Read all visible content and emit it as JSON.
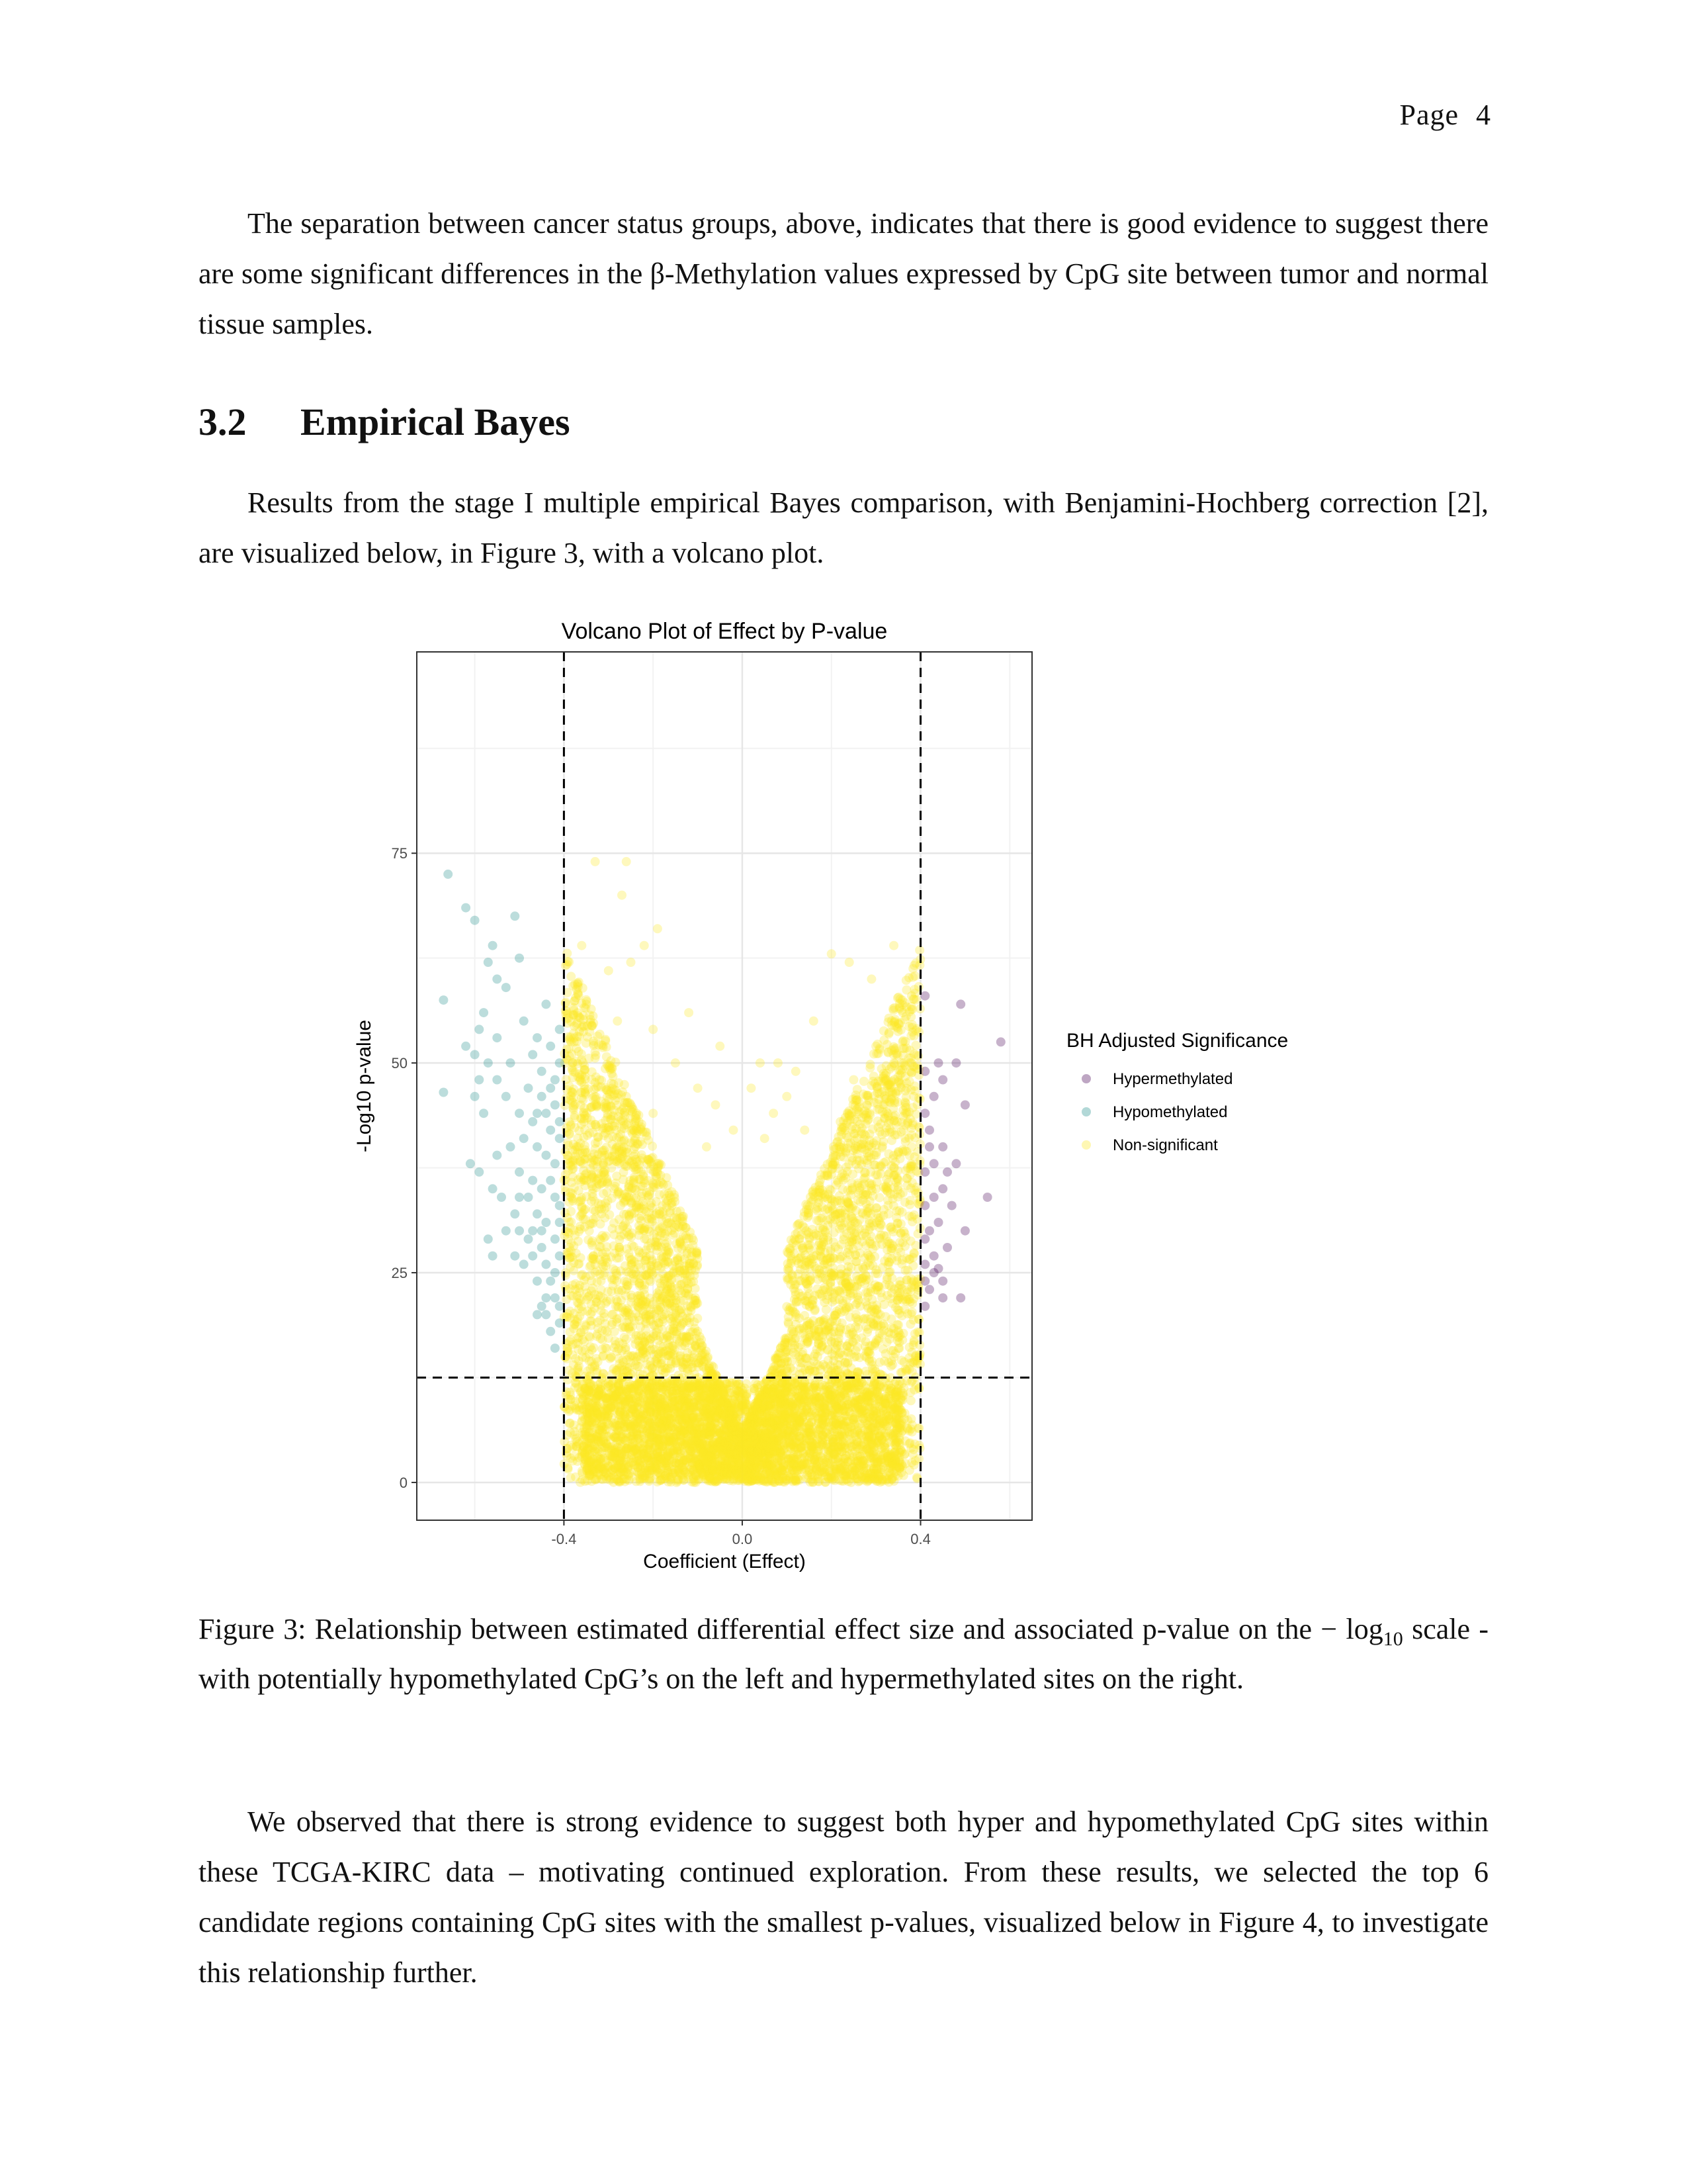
{
  "page": {
    "label": "Page",
    "number": "4"
  },
  "paragraph1": "The separation between cancer status groups, above, indicates that there is good evidence to suggest there are some significant differences in the β-Methylation values expressed by CpG site between tumor and normal tissue samples.",
  "section": {
    "number": "3.2",
    "title": "Empirical Bayes"
  },
  "paragraph2": "Results from the stage I multiple empirical Bayes comparison, with Benjamini-Hochberg correction [2], are visualized below, in Figure 3, with a volcano plot.",
  "caption": {
    "prefix": "Figure 3:",
    "text_before": "Relationship between estimated differential effect size and associated p-value on the − log",
    "subscript": "10",
    "text_after": " scale - with potentially hypomethylated CpG’s on the left and hypermethylated sites on the right."
  },
  "paragraph3": "We observed that there is strong evidence to suggest both hyper and hypomethylated CpG sites within these TCGA-KIRC data – motivating continued exploration. From these results, we selected the top 6 candidate regions containing CpG sites with the smallest p-values, visualized below in Figure 4, to investigate this relationship further.",
  "chart_data": {
    "type": "scatter",
    "title": "Volcano Plot of Effect by P-value",
    "xlabel": "Coefficient (Effect)",
    "ylabel": "-Log10 p-value",
    "xlim": [
      -0.73,
      0.65
    ],
    "ylim": [
      -4.5,
      99
    ],
    "x_ticks": [
      -0.4,
      0.0,
      0.4
    ],
    "x_tick_labels": [
      "-0.4",
      "0.0",
      "0.4"
    ],
    "y_ticks": [
      0,
      25,
      50,
      75
    ],
    "y_tick_labels": [
      "0",
      "25",
      "50",
      "75"
    ],
    "reference_lines": {
      "vertical": [
        -0.4,
        0.4
      ],
      "horizontal": [
        12.5
      ],
      "style": "dashed"
    },
    "grid": true,
    "legend": {
      "title": "BH Adjusted Significance",
      "position": "right",
      "entries": [
        {
          "name": "Hypermethylated",
          "color": "#440154"
        },
        {
          "name": "Hypomethylated",
          "color": "#21908C"
        },
        {
          "name": "Non-significant",
          "color": "#FDE725"
        }
      ]
    },
    "series": [
      {
        "name": "Hypermethylated",
        "color": "#440154",
        "points": [
          [
            0.41,
            58
          ],
          [
            0.49,
            57
          ],
          [
            0.58,
            52.5
          ],
          [
            0.41,
            49
          ],
          [
            0.44,
            50
          ],
          [
            0.45,
            48
          ],
          [
            0.48,
            50
          ],
          [
            0.5,
            45
          ],
          [
            0.43,
            46
          ],
          [
            0.41,
            44
          ],
          [
            0.42,
            42
          ],
          [
            0.45,
            40
          ],
          [
            0.42,
            40
          ],
          [
            0.43,
            38
          ],
          [
            0.46,
            37
          ],
          [
            0.48,
            38
          ],
          [
            0.41,
            37
          ],
          [
            0.45,
            35
          ],
          [
            0.43,
            34
          ],
          [
            0.47,
            33
          ],
          [
            0.41,
            33
          ],
          [
            0.55,
            34
          ],
          [
            0.5,
            30
          ],
          [
            0.44,
            31
          ],
          [
            0.42,
            30
          ],
          [
            0.41,
            29
          ],
          [
            0.46,
            28
          ],
          [
            0.43,
            27
          ],
          [
            0.41,
            26
          ],
          [
            0.44,
            25.5
          ],
          [
            0.43,
            25
          ],
          [
            0.45,
            24
          ],
          [
            0.41,
            24
          ],
          [
            0.42,
            23
          ],
          [
            0.45,
            22
          ],
          [
            0.49,
            22
          ],
          [
            0.41,
            21
          ]
        ]
      },
      {
        "name": "Hypomethylated",
        "color": "#21908C",
        "points": [
          [
            -0.66,
            72.5
          ],
          [
            -0.5,
            62.5
          ],
          [
            -0.67,
            57.5
          ],
          [
            -0.67,
            46.5
          ],
          [
            -0.62,
            68.5
          ],
          [
            -0.6,
            67
          ],
          [
            -0.51,
            67.5
          ],
          [
            -0.56,
            64
          ],
          [
            -0.57,
            62
          ],
          [
            -0.55,
            60
          ],
          [
            -0.53,
            59
          ],
          [
            -0.58,
            56
          ],
          [
            -0.59,
            54
          ],
          [
            -0.55,
            53
          ],
          [
            -0.62,
            52
          ],
          [
            -0.6,
            51
          ],
          [
            -0.57,
            50
          ],
          [
            -0.59,
            48
          ],
          [
            -0.55,
            48
          ],
          [
            -0.6,
            46
          ],
          [
            -0.58,
            44
          ],
          [
            -0.53,
            46
          ],
          [
            -0.52,
            50
          ],
          [
            -0.49,
            55
          ],
          [
            -0.46,
            53
          ],
          [
            -0.44,
            57
          ],
          [
            -0.43,
            52
          ],
          [
            -0.41,
            50
          ],
          [
            -0.48,
            47
          ],
          [
            -0.45,
            46
          ],
          [
            -0.42,
            45
          ],
          [
            -0.5,
            44
          ],
          [
            -0.47,
            43
          ],
          [
            -0.43,
            42
          ],
          [
            -0.41,
            41
          ],
          [
            -0.49,
            41
          ],
          [
            -0.46,
            40
          ],
          [
            -0.52,
            40
          ],
          [
            -0.55,
            39
          ],
          [
            -0.44,
            39
          ],
          [
            -0.42,
            38
          ],
          [
            -0.5,
            37
          ],
          [
            -0.47,
            36
          ],
          [
            -0.61,
            38
          ],
          [
            -0.59,
            37
          ],
          [
            -0.56,
            35
          ],
          [
            -0.54,
            34
          ],
          [
            -0.48,
            34
          ],
          [
            -0.45,
            35
          ],
          [
            -0.42,
            34
          ],
          [
            -0.41,
            33
          ],
          [
            -0.51,
            32
          ],
          [
            -0.46,
            32
          ],
          [
            -0.44,
            31
          ],
          [
            -0.5,
            30
          ],
          [
            -0.53,
            30
          ],
          [
            -0.48,
            29
          ],
          [
            -0.45,
            28
          ],
          [
            -0.42,
            29
          ],
          [
            -0.41,
            27
          ],
          [
            -0.47,
            27
          ],
          [
            -0.49,
            26
          ],
          [
            -0.44,
            26
          ],
          [
            -0.43,
            24
          ],
          [
            -0.46,
            24
          ],
          [
            -0.42,
            22
          ],
          [
            -0.45,
            21
          ],
          [
            -0.44,
            20
          ],
          [
            -0.41,
            19
          ],
          [
            -0.43,
            18
          ],
          [
            -0.42,
            16
          ],
          [
            -0.56,
            27
          ],
          [
            -0.51,
            27
          ],
          [
            -0.57,
            29
          ],
          [
            -0.5,
            34
          ],
          [
            -0.43,
            47
          ],
          [
            -0.41,
            54
          ],
          [
            -0.45,
            49
          ],
          [
            -0.47,
            51
          ],
          [
            -0.42,
            48
          ],
          [
            -0.44,
            44
          ],
          [
            -0.46,
            44
          ],
          [
            -0.41,
            43
          ],
          [
            -0.43,
            36
          ],
          [
            -0.41,
            31
          ],
          [
            -0.45,
            30
          ],
          [
            -0.47,
            30
          ],
          [
            -0.42,
            25
          ],
          [
            -0.44,
            22
          ],
          [
            -0.41,
            21
          ],
          [
            -0.46,
            20
          ]
        ]
      },
      {
        "name": "Non-significant",
        "color": "#FDE725",
        "points": [
          [
            -0.33,
            74
          ],
          [
            -0.26,
            74
          ],
          [
            -0.27,
            70
          ],
          [
            -0.36,
            64
          ],
          [
            -0.22,
            64
          ],
          [
            -0.3,
            61
          ],
          [
            -0.25,
            62
          ],
          [
            -0.19,
            66
          ],
          [
            0.2,
            63
          ],
          [
            0.24,
            62
          ],
          [
            0.34,
            64
          ],
          [
            0.38,
            58
          ],
          [
            0.29,
            60
          ],
          [
            -0.35,
            57
          ],
          [
            -0.12,
            56
          ],
          [
            0.36,
            56
          ],
          [
            -0.05,
            52
          ],
          [
            0.04,
            50
          ],
          [
            0.08,
            50
          ],
          [
            0.12,
            49
          ],
          [
            -0.2,
            54
          ],
          [
            -0.28,
            55
          ],
          [
            0.16,
            55
          ],
          [
            0.3,
            52
          ],
          [
            0.34,
            50
          ],
          [
            -0.1,
            47
          ],
          [
            0.02,
            47
          ],
          [
            0.1,
            46
          ],
          [
            -0.06,
            45
          ],
          [
            0.07,
            44
          ],
          [
            -0.15,
            50
          ],
          [
            0.25,
            48
          ],
          [
            0.32,
            45
          ],
          [
            -0.32,
            48
          ],
          [
            -0.38,
            50
          ],
          [
            -0.37,
            40
          ],
          [
            0.38,
            40
          ],
          [
            -0.02,
            42
          ],
          [
            0.05,
            41
          ],
          [
            -0.08,
            40
          ],
          [
            0.14,
            42
          ],
          [
            -0.2,
            44
          ],
          [
            0.22,
            43
          ],
          [
            0.28,
            44
          ],
          [
            -0.26,
            46
          ],
          [
            0.35,
            36
          ],
          [
            -0.35,
            36
          ],
          [
            0.3,
            39
          ],
          [
            -0.3,
            41
          ]
        ],
        "note_cloud": ""
      }
    ]
  }
}
